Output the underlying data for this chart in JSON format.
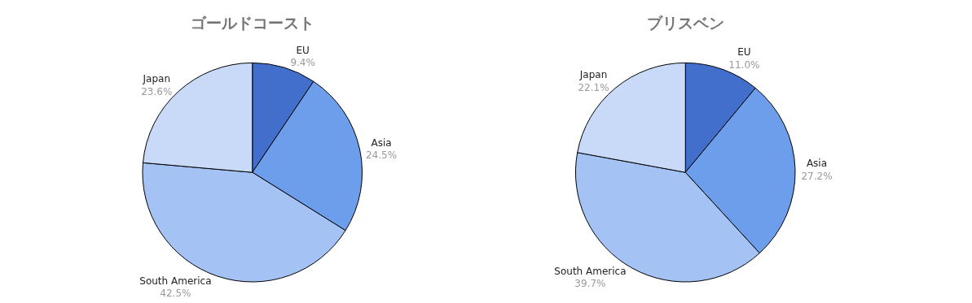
{
  "chart_data": [
    {
      "type": "pie",
      "title": "ゴールドコースト",
      "categories": [
        "EU",
        "Asia",
        "South America",
        "Japan"
      ],
      "values": [
        9.4,
        24.5,
        42.5,
        23.6
      ],
      "colors": [
        "#436fcc",
        "#6d9eeb",
        "#a4c2f4",
        "#c9daf8"
      ],
      "value_labels": [
        "9.4%",
        "24.5%",
        "42.5%",
        "23.6%"
      ],
      "legend": false
    },
    {
      "type": "pie",
      "title": "ブリスベン",
      "categories": [
        "EU",
        "Asia",
        "South America",
        "Japan"
      ],
      "values": [
        11.0,
        27.2,
        39.7,
        22.1
      ],
      "colors": [
        "#436fcc",
        "#6d9eeb",
        "#a4c2f4",
        "#c9daf8"
      ],
      "value_labels": [
        "11.0%",
        "27.2%",
        "39.7%",
        "22.1%"
      ],
      "legend": false
    }
  ]
}
